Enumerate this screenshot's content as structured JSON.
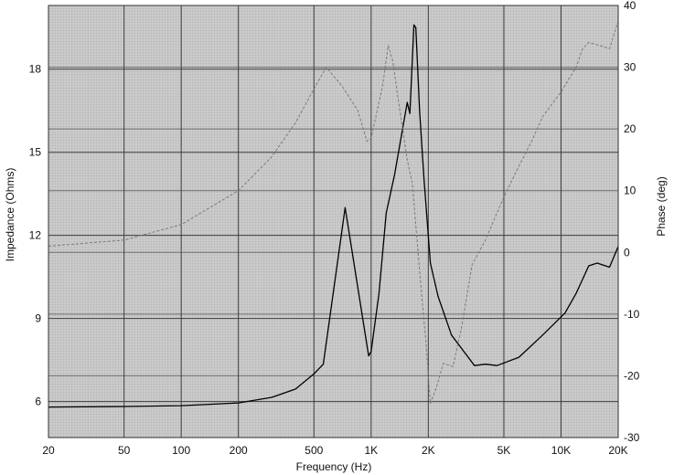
{
  "chart_data": {
    "type": "line",
    "xlabel": "Frequency (Hz)",
    "ylabel_left": "Impedance (Ohms)",
    "ylabel_right": "Phase (deg)",
    "x_scale": "log",
    "xlim": [
      20,
      20000
    ],
    "ylim_left": [
      4.7,
      20.3
    ],
    "ylim_right": [
      -30,
      40
    ],
    "x_ticks": [
      20,
      50,
      100,
      200,
      500,
      1000,
      2000,
      5000,
      10000,
      20000
    ],
    "x_tick_labels": [
      "20",
      "50",
      "100",
      "200",
      "500",
      "1K",
      "2K",
      "5K",
      "10K",
      "20K"
    ],
    "y_ticks_left": [
      6,
      9,
      12,
      15,
      18
    ],
    "y_tick_labels_left": [
      "6",
      "9",
      "12",
      "15",
      "18"
    ],
    "y_ticks_right": [
      -30,
      -20,
      -10,
      0,
      10,
      20,
      30,
      40
    ],
    "y_tick_labels_right": [
      "-30",
      "-20",
      "-10",
      "0",
      "10",
      "20",
      "30",
      "40"
    ],
    "grid": true,
    "background_color": "#c8c8c8",
    "series": [
      {
        "axis": "left",
        "style": "solid",
        "color": "#000000",
        "points": [
          [
            20,
            5.8
          ],
          [
            50,
            5.82
          ],
          [
            100,
            5.85
          ],
          [
            200,
            5.95
          ],
          [
            300,
            6.15
          ],
          [
            400,
            6.45
          ],
          [
            500,
            7.0
          ],
          [
            560,
            7.35
          ],
          [
            730,
            13.0
          ],
          [
            970,
            7.65
          ],
          [
            1000,
            7.8
          ],
          [
            1100,
            9.9
          ],
          [
            1200,
            12.8
          ],
          [
            1330,
            14.2
          ],
          [
            1550,
            16.8
          ],
          [
            1600,
            16.4
          ],
          [
            1680,
            19.6
          ],
          [
            1720,
            19.5
          ],
          [
            1800,
            16.5
          ],
          [
            1900,
            14.0
          ],
          [
            2050,
            11.0
          ],
          [
            2250,
            9.8
          ],
          [
            2650,
            8.4
          ],
          [
            3500,
            7.3
          ],
          [
            4000,
            7.35
          ],
          [
            4600,
            7.3
          ],
          [
            6000,
            7.6
          ],
          [
            8000,
            8.4
          ],
          [
            10500,
            9.2
          ],
          [
            12000,
            9.9
          ],
          [
            14000,
            10.9
          ],
          [
            15500,
            11.0
          ],
          [
            18000,
            10.85
          ],
          [
            20000,
            11.6
          ]
        ]
      },
      {
        "axis": "right",
        "style": "dashed",
        "color": "#7a7a7a",
        "points": [
          [
            20,
            1.0
          ],
          [
            50,
            2.0
          ],
          [
            100,
            4.5
          ],
          [
            200,
            10.0
          ],
          [
            300,
            15.5
          ],
          [
            400,
            21.0
          ],
          [
            500,
            26.5
          ],
          [
            580,
            30.0
          ],
          [
            700,
            27.0
          ],
          [
            850,
            23.0
          ],
          [
            950,
            18.0
          ],
          [
            1000,
            18.5
          ],
          [
            1150,
            27.0
          ],
          [
            1230,
            33.5
          ],
          [
            1300,
            31.0
          ],
          [
            1400,
            24.0
          ],
          [
            1550,
            15.0
          ],
          [
            1650,
            11.0
          ],
          [
            1800,
            -3.0
          ],
          [
            1950,
            -15.0
          ],
          [
            2000,
            -20.0
          ],
          [
            2050,
            -24.5
          ],
          [
            2200,
            -22.0
          ],
          [
            2400,
            -18.0
          ],
          [
            2700,
            -18.5
          ],
          [
            3000,
            -12.0
          ],
          [
            3400,
            -2.0
          ],
          [
            4000,
            2.0
          ],
          [
            5000,
            9.0
          ],
          [
            6000,
            14.0
          ],
          [
            7000,
            18.0
          ],
          [
            8000,
            22.0
          ],
          [
            10000,
            26.0
          ],
          [
            12000,
            30.0
          ],
          [
            13000,
            33.0
          ],
          [
            14000,
            34.0
          ],
          [
            16000,
            33.5
          ],
          [
            18000,
            33.0
          ],
          [
            20000,
            37.5
          ]
        ]
      }
    ]
  }
}
